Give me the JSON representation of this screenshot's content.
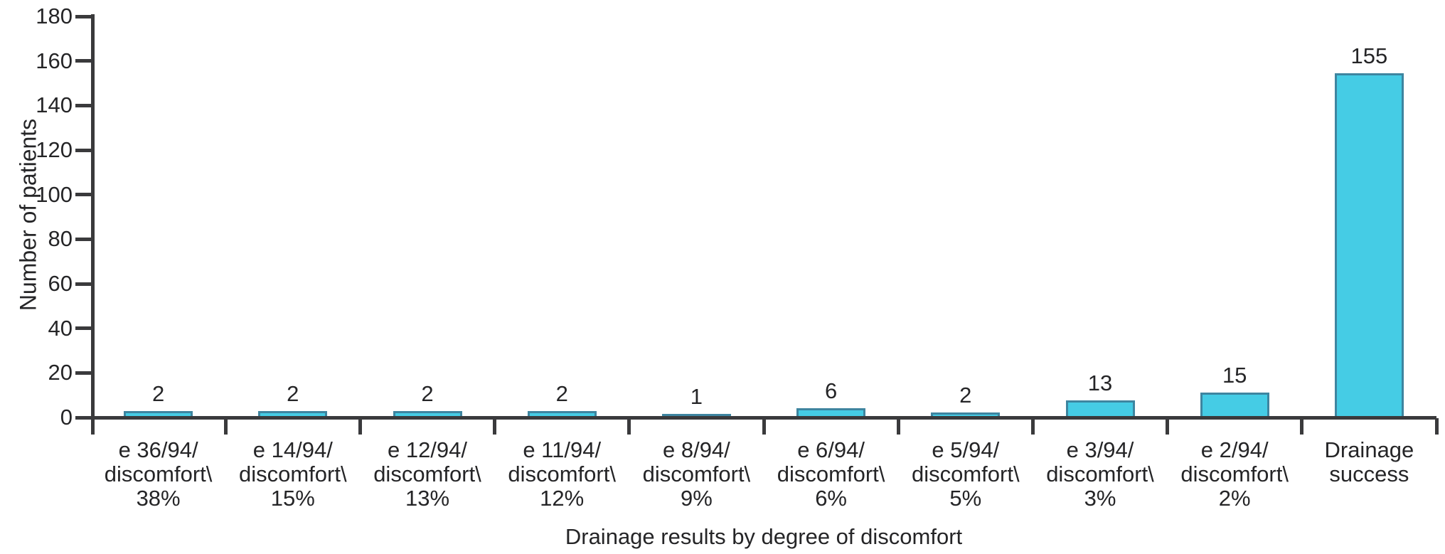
{
  "figure": {
    "background_color": "#ffffff",
    "text_color": "#252527",
    "axis_color": "#3a3a3c"
  },
  "chart_data": {
    "type": "bar",
    "title": "",
    "xlabel": "Drainage results by degree of discomfort",
    "ylabel": "Number of patients",
    "ylim": [
      0,
      180
    ],
    "ytick_step": 20,
    "yticks": [
      180,
      160,
      140,
      120,
      100,
      80,
      60,
      40,
      20,
      0
    ],
    "grid": false,
    "legend": null,
    "bar_fill_color": "#45cce5",
    "bar_border_color": "#3e85a0",
    "categories": [
      {
        "lines": [
          "e 36/94/",
          "discomfort\\",
          "38%"
        ],
        "value": 2,
        "drawn_value": 3
      },
      {
        "lines": [
          "e 14/94/",
          "discomfort\\",
          "15%"
        ],
        "value": 2,
        "drawn_value": 3
      },
      {
        "lines": [
          "e 12/94/",
          "discomfort\\",
          "13%"
        ],
        "value": 2,
        "drawn_value": 3
      },
      {
        "lines": [
          "e 11/94/",
          "discomfort\\",
          "12%"
        ],
        "value": 2,
        "drawn_value": 3
      },
      {
        "lines": [
          "e 8/94/",
          "discomfort\\",
          "9%"
        ],
        "value": 1,
        "drawn_value": 1.6
      },
      {
        "lines": [
          "e 6/94/",
          "discomfort\\",
          "6%"
        ],
        "value": 6,
        "drawn_value": 4.2
      },
      {
        "lines": [
          "e 5/94/",
          "discomfort\\",
          "5%"
        ],
        "value": 2,
        "drawn_value": 2.2
      },
      {
        "lines": [
          "e 3/94/",
          "discomfort\\",
          "3%"
        ],
        "value": 13,
        "drawn_value": 7.7
      },
      {
        "lines": [
          "e 2/94/",
          "discomfort\\",
          "2%"
        ],
        "value": 15,
        "drawn_value": 11.2
      },
      {
        "lines": [
          "Drainage",
          "success"
        ],
        "value": 155,
        "drawn_value": 154.5
      }
    ],
    "values": [
      2,
      2,
      2,
      2,
      1,
      6,
      2,
      13,
      15,
      155
    ]
  }
}
